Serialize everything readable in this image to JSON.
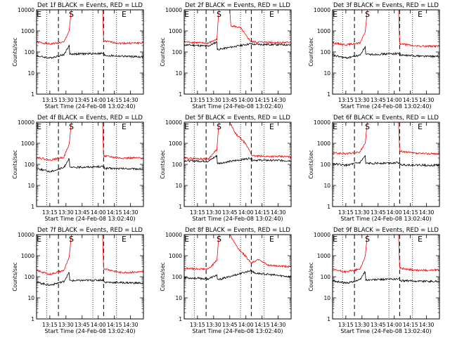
{
  "figure": {
    "xlabel": "Start Time (24-Feb-08 13:02:40)",
    "ylabel": "Counts/sec",
    "x_ticks": [
      "13:15",
      "13:30",
      "13:45",
      "14:00",
      "14:15",
      "14:30"
    ],
    "y_ticks": [
      "1",
      "10",
      "100",
      "1000",
      "10000"
    ],
    "marker_labels": {
      "s": "S",
      "e": "E"
    }
  },
  "chart_data": [
    {
      "type": "line",
      "title": "Det 1f BLACK = Events, RED = LLD",
      "xlim": [
        "13:02:40",
        "14:42"
      ],
      "ylim": [
        1,
        10000
      ],
      "yscale": "log",
      "vlines_dotted": [
        "13:12",
        "13:55",
        "14:17"
      ],
      "vlines_dashed": [
        "13:23",
        "14:05"
      ],
      "markers": {
        "e1": "13:05",
        "s": "13:35",
        "e2": "14:24"
      },
      "series": [
        {
          "color": "#ff0000",
          "points": [
            [
              "13:02:40",
              300
            ],
            [
              "13:15",
              240
            ],
            [
              "13:28",
              290
            ],
            [
              "13:33",
              1000
            ],
            [
              "13:35",
              10000
            ],
            [
              "14:04",
              10000
            ],
            [
              "14:05",
              330
            ],
            [
              "14:20",
              260
            ],
            [
              "14:42",
              270
            ]
          ]
        },
        {
          "color": "#000000",
          "points": [
            [
              "13:02:40",
              65
            ],
            [
              "13:15",
              52
            ],
            [
              "13:28",
              75
            ],
            [
              "13:33",
              200
            ],
            [
              "13:33:30",
              80
            ],
            [
              "14:05",
              85
            ],
            [
              "14:06",
              68
            ],
            [
              "14:42",
              58
            ]
          ]
        }
      ]
    },
    {
      "type": "line",
      "title": "Det 2f BLACK = Events, RED = LLD",
      "xlim": [
        "13:02:40",
        "14:42"
      ],
      "ylim": [
        1,
        10000
      ],
      "yscale": "log",
      "vlines_dotted": [
        "13:12",
        "13:55",
        "14:17"
      ],
      "vlines_dashed": [
        "13:23",
        "14:05"
      ],
      "markers": {
        "e1": "13:05",
        "s": "13:35",
        "e2": "14:24"
      },
      "series": [
        {
          "color": "#ff0000",
          "points": [
            [
              "13:02:40",
              300
            ],
            [
              "13:25",
              260
            ],
            [
              "13:33",
              400
            ],
            [
              "13:35",
              10000
            ],
            [
              "13:45",
              10000
            ],
            [
              "13:46",
              1800
            ],
            [
              "13:55",
              1400
            ],
            [
              "14:00",
              600
            ],
            [
              "14:05",
              300
            ],
            [
              "14:42",
              280
            ]
          ]
        },
        {
          "color": "#000000",
          "points": [
            [
              "13:02:40",
              220
            ],
            [
              "13:25",
              190
            ],
            [
              "13:33",
              300
            ],
            [
              "13:33:30",
              130
            ],
            [
              "14:05",
              250
            ],
            [
              "14:06",
              230
            ],
            [
              "14:42",
              220
            ]
          ]
        }
      ]
    },
    {
      "type": "line",
      "title": "Det 3f BLACK = Events, RED = LLD",
      "xlim": [
        "13:02:40",
        "14:42"
      ],
      "ylim": [
        1,
        10000
      ],
      "yscale": "log",
      "vlines_dotted": [
        "13:12",
        "13:55",
        "14:17"
      ],
      "vlines_dashed": [
        "13:23",
        "14:05"
      ],
      "markers": {
        "e1": "13:05",
        "s": "13:35",
        "e2": "14:24"
      },
      "series": [
        {
          "color": "#ff0000",
          "points": [
            [
              "13:02:40",
              270
            ],
            [
              "13:15",
              220
            ],
            [
              "13:28",
              260
            ],
            [
              "13:33",
              900
            ],
            [
              "13:35",
              10000
            ],
            [
              "14:04",
              10000
            ],
            [
              "14:05",
              250
            ],
            [
              "14:20",
              190
            ],
            [
              "14:42",
              190
            ]
          ]
        },
        {
          "color": "#000000",
          "points": [
            [
              "13:02:40",
              70
            ],
            [
              "13:15",
              52
            ],
            [
              "13:28",
              70
            ],
            [
              "13:33",
              180
            ],
            [
              "13:33:30",
              75
            ],
            [
              "14:05",
              85
            ],
            [
              "14:06",
              70
            ],
            [
              "14:42",
              60
            ]
          ]
        }
      ]
    },
    {
      "type": "line",
      "title": "Det 4f BLACK = Events, RED = LLD",
      "xlim": [
        "13:02:40",
        "14:42"
      ],
      "ylim": [
        1,
        10000
      ],
      "yscale": "log",
      "vlines_dotted": [
        "13:12",
        "13:55",
        "14:17"
      ],
      "vlines_dashed": [
        "13:23",
        "14:05"
      ],
      "markers": {
        "e1": "13:05",
        "s": "13:35",
        "e2": "14:24"
      },
      "series": [
        {
          "color": "#ff0000",
          "points": [
            [
              "13:02:40",
              220
            ],
            [
              "13:15",
              160
            ],
            [
              "13:28",
              220
            ],
            [
              "13:33",
              900
            ],
            [
              "13:35",
              10000
            ],
            [
              "14:04",
              10000
            ],
            [
              "14:05",
              250
            ],
            [
              "14:20",
              200
            ],
            [
              "14:42",
              200
            ]
          ]
        },
        {
          "color": "#000000",
          "points": [
            [
              "13:02:40",
              65
            ],
            [
              "13:15",
              45
            ],
            [
              "13:28",
              70
            ],
            [
              "13:33",
              200
            ],
            [
              "13:33:30",
              70
            ],
            [
              "14:05",
              80
            ],
            [
              "14:06",
              65
            ],
            [
              "14:42",
              60
            ]
          ]
        }
      ]
    },
    {
      "type": "line",
      "title": "Det 5f BLACK = Events, RED = LLD",
      "xlim": [
        "13:02:40",
        "14:42"
      ],
      "ylim": [
        1,
        10000
      ],
      "yscale": "log",
      "vlines_dotted": [
        "13:12",
        "13:55",
        "14:17"
      ],
      "vlines_dashed": [
        "13:23",
        "14:05"
      ],
      "markers": {
        "e1": "13:05",
        "s": "13:35",
        "e2": "14:24"
      },
      "series": [
        {
          "color": "#ff0000",
          "points": [
            [
              "13:02:40",
              200
            ],
            [
              "13:25",
              180
            ],
            [
              "13:33",
              500
            ],
            [
              "13:35",
              10000
            ],
            [
              "13:45",
              10000
            ],
            [
              "13:50",
              3000
            ],
            [
              "13:58",
              1200
            ],
            [
              "14:03",
              500
            ],
            [
              "14:06",
              250
            ],
            [
              "14:42",
              230
            ]
          ]
        },
        {
          "color": "#000000",
          "points": [
            [
              "13:02:40",
              150
            ],
            [
              "13:25",
              140
            ],
            [
              "13:33",
              260
            ],
            [
              "13:33:30",
              110
            ],
            [
              "14:05",
              200
            ],
            [
              "14:06",
              160
            ],
            [
              "14:42",
              150
            ]
          ]
        }
      ]
    },
    {
      "type": "line",
      "title": "Det 6f BLACK = Events, RED = LLD",
      "xlim": [
        "13:02:40",
        "14:42"
      ],
      "ylim": [
        1,
        10000
      ],
      "yscale": "log",
      "vlines_dotted": [
        "13:12",
        "13:55",
        "14:17"
      ],
      "vlines_dashed": [
        "13:23",
        "14:05"
      ],
      "markers": {
        "e1": "13:05",
        "s": "13:35",
        "e2": "14:24"
      },
      "series": [
        {
          "color": "#ff0000",
          "points": [
            [
              "13:02:40",
              350
            ],
            [
              "13:15",
              320
            ],
            [
              "13:28",
              380
            ],
            [
              "13:33",
              1000
            ],
            [
              "13:35",
              10000
            ],
            [
              "14:04",
              10000
            ],
            [
              "14:05",
              420
            ],
            [
              "14:20",
              330
            ],
            [
              "14:42",
              320
            ]
          ]
        },
        {
          "color": "#000000",
          "points": [
            [
              "13:02:40",
              110
            ],
            [
              "13:15",
              90
            ],
            [
              "13:28",
              120
            ],
            [
              "13:33",
              250
            ],
            [
              "13:33:30",
              110
            ],
            [
              "14:05",
              120
            ],
            [
              "14:06",
              95
            ],
            [
              "14:42",
              90
            ]
          ]
        }
      ]
    },
    {
      "type": "line",
      "title": "Det 7f BLACK = Events, RED = LLD",
      "xlim": [
        "13:02:40",
        "14:42"
      ],
      "ylim": [
        1,
        10000
      ],
      "yscale": "log",
      "vlines_dotted": [
        "13:12",
        "13:55",
        "14:17"
      ],
      "vlines_dashed": [
        "13:23",
        "14:05"
      ],
      "markers": {
        "e1": "13:05",
        "s": "13:35",
        "e2": "14:24"
      },
      "series": [
        {
          "color": "#ff0000",
          "points": [
            [
              "13:02:40",
              200
            ],
            [
              "13:15",
              130
            ],
            [
              "13:28",
              200
            ],
            [
              "13:33",
              800
            ],
            [
              "13:35",
              10000
            ],
            [
              "14:04",
              10000
            ],
            [
              "14:05",
              250
            ],
            [
              "14:20",
              160
            ],
            [
              "14:42",
              170
            ]
          ]
        },
        {
          "color": "#000000",
          "points": [
            [
              "13:02:40",
              55
            ],
            [
              "13:15",
              40
            ],
            [
              "13:28",
              60
            ],
            [
              "13:33",
              160
            ],
            [
              "13:33:30",
              65
            ],
            [
              "14:05",
              70
            ],
            [
              "14:06",
              55
            ],
            [
              "14:42",
              50
            ]
          ]
        }
      ]
    },
    {
      "type": "line",
      "title": "Det 8f BLACK = Events, RED = LLD",
      "xlim": [
        "13:02:40",
        "14:42"
      ],
      "ylim": [
        1,
        10000
      ],
      "yscale": "log",
      "vlines_dotted": [
        "13:12",
        "13:55",
        "14:17"
      ],
      "vlines_dashed": [
        "13:23",
        "14:05"
      ],
      "markers": {
        "e1": "13:05",
        "s": "13:35",
        "e2": "14:24"
      },
      "series": [
        {
          "color": "#ff0000",
          "points": [
            [
              "13:02:40",
              250
            ],
            [
              "13:25",
              230
            ],
            [
              "13:33",
              600
            ],
            [
              "13:35",
              10000
            ],
            [
              "13:45",
              10000
            ],
            [
              "13:52",
              2500
            ],
            [
              "14:00",
              900
            ],
            [
              "14:05",
              450
            ],
            [
              "14:12",
              700
            ],
            [
              "14:20",
              350
            ],
            [
              "14:42",
              300
            ]
          ]
        },
        {
          "color": "#000000",
          "points": [
            [
              "13:02:40",
              90
            ],
            [
              "13:25",
              80
            ],
            [
              "13:33",
              120
            ],
            [
              "13:33:30",
              70
            ],
            [
              "14:05",
              200
            ],
            [
              "14:08",
              150
            ],
            [
              "14:42",
              100
            ]
          ]
        }
      ]
    },
    {
      "type": "line",
      "title": "Det 9f BLACK = Events, RED = LLD",
      "xlim": [
        "13:02:40",
        "14:42"
      ],
      "ylim": [
        1,
        10000
      ],
      "yscale": "log",
      "vlines_dotted": [
        "13:12",
        "13:55",
        "14:17"
      ],
      "vlines_dashed": [
        "13:23",
        "14:05"
      ],
      "markers": {
        "e1": "13:05",
        "s": "13:35",
        "e2": "14:24"
      },
      "series": [
        {
          "color": "#ff0000",
          "points": [
            [
              "13:02:40",
              220
            ],
            [
              "13:15",
              170
            ],
            [
              "13:28",
              230
            ],
            [
              "13:33",
              900
            ],
            [
              "13:35",
              10000
            ],
            [
              "14:04",
              10000
            ],
            [
              "14:05",
              260
            ],
            [
              "14:20",
              200
            ],
            [
              "14:42",
              210
            ]
          ]
        },
        {
          "color": "#000000",
          "points": [
            [
              "13:02:40",
              65
            ],
            [
              "13:15",
              50
            ],
            [
              "13:28",
              70
            ],
            [
              "13:33",
              180
            ],
            [
              "13:33:30",
              70
            ],
            [
              "14:05",
              80
            ],
            [
              "14:06",
              65
            ],
            [
              "14:42",
              60
            ]
          ]
        }
      ]
    }
  ]
}
